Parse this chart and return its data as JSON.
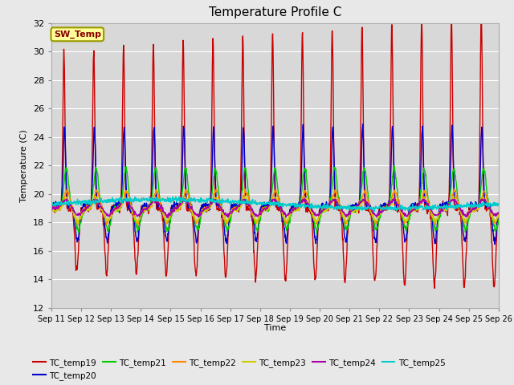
{
  "title": "Temperature Profile C",
  "xlabel": "Time",
  "ylabel": "Temperature (C)",
  "ylim": [
    12,
    32
  ],
  "x_tick_labels": [
    "Sep 11",
    "Sep 12",
    "Sep 13",
    "Sep 14",
    "Sep 15",
    "Sep 16",
    "Sep 17",
    "Sep 18",
    "Sep 19",
    "Sep 20",
    "Sep 21",
    "Sep 22",
    "Sep 23",
    "Sep 24",
    "Sep 25",
    "Sep 26"
  ],
  "legend_entries": [
    "TC_temp19",
    "TC_temp20",
    "TC_temp21",
    "TC_temp22",
    "TC_temp23",
    "TC_temp24",
    "TC_temp25"
  ],
  "line_colors": [
    "#cc0000",
    "#0000cc",
    "#00cc00",
    "#ff8800",
    "#cccc00",
    "#aa00aa",
    "#00cccc"
  ],
  "sw_temp_box_facecolor": "#ffff99",
  "sw_temp_text_color": "#8b0000",
  "sw_temp_border_color": "#999900",
  "background_color": "#e8e8e8",
  "plot_bg_color": "#d8d8d8",
  "grid_color": "#ffffff",
  "days": 15,
  "n_per_day": 96
}
